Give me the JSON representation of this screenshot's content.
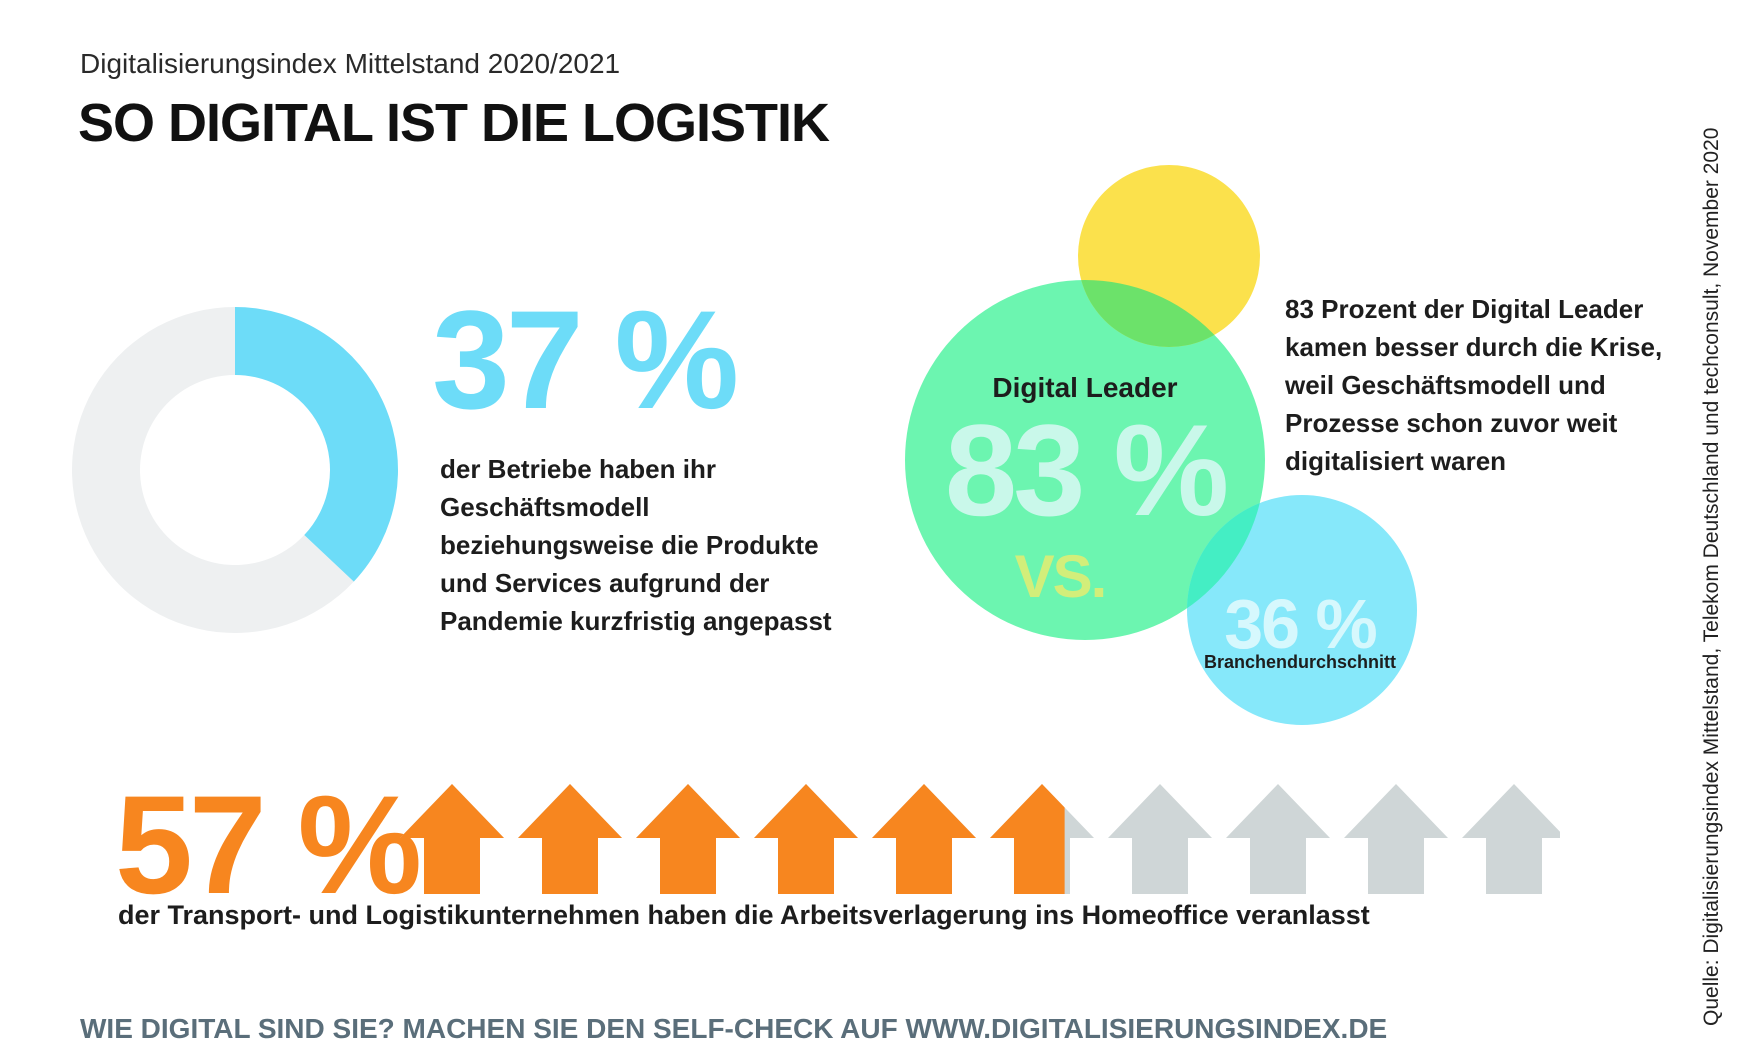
{
  "header": {
    "subtitle": "Digitalisierungsindex Mittelstand 2020/2021",
    "title": "SO DIGITAL IST DIE LOGISTIK"
  },
  "source": "Quelle: Digitalisierungsindex Mittelstand, Telekom Deutschland und techconsult, November 2020",
  "footer": "WIE DIGITAL SIND SIE? MACHEN SIE DEN SELF-CHECK AUF WWW.DIGITALISIERUNGSINDEX.DE",
  "colors": {
    "cyan": "#6ddcf8",
    "grey_light": "#eef0f1",
    "green": "#6cf5b0",
    "yellow": "#fbe14c",
    "overlap_green": "#6ce26a",
    "cyan_circle": "#86e8fa",
    "orange": "#f7861f",
    "grey_arrow": "#cfd6d7",
    "footer": "#5a6e7a"
  },
  "chart_data": [
    {
      "type": "pie",
      "values": [
        37,
        63
      ],
      "display_value": "37 %",
      "description": "der Betriebe haben ihr Geschäftsmodell beziehungsweise die Produkte und Services aufgrund der Pandemie kurzfristig angepasst"
    },
    {
      "type": "bubble",
      "series": [
        {
          "label": "Digital Leader",
          "value": 83,
          "display": "83 %"
        },
        {
          "label": "Branchendurchschnitt",
          "value": 36,
          "display": "36 %"
        }
      ],
      "vs_label": "VS.",
      "description": "83 Prozent der Digital Leader kamen besser durch die Krise, weil Geschäftsmodell und Prozesse schon zuvor weit digitalisiert waren"
    },
    {
      "type": "pictogram",
      "value": 57,
      "display_value": "57 %",
      "icon": "arrow-up-icon",
      "icon_count": 10,
      "description": "der Transport- und Logistikunternehmen haben die Arbeitsverlagerung ins Homeoffice veranlasst"
    }
  ]
}
